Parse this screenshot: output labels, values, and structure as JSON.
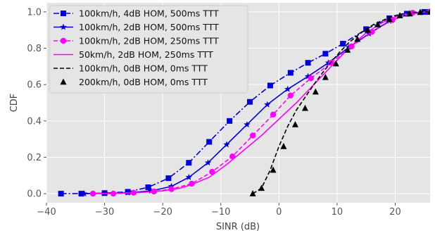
{
  "chart_data": {
    "type": "line",
    "title": "",
    "xlabel": "SINR (dB)",
    "ylabel": "CDF",
    "xlim": [
      -40,
      26
    ],
    "ylim": [
      -0.05,
      1.05
    ],
    "xticks": [
      -40,
      -30,
      -20,
      -10,
      0,
      10,
      20
    ],
    "yticks": [
      0.0,
      0.2,
      0.4,
      0.6,
      0.8,
      1.0
    ],
    "xtick_labels": [
      "−40",
      "−30",
      "−20",
      "−10",
      "0",
      "10",
      "20"
    ],
    "ytick_labels": [
      "0.0",
      "0.2",
      "0.4",
      "0.6",
      "0.8",
      "1.0"
    ],
    "grid": true,
    "legend_position": "top-left",
    "series": [
      {
        "name": "100km/h, 4dB HOM, 500ms TTT",
        "color": "#0000dd",
        "dash": "dashdot",
        "marker": "square",
        "x": [
          -37.5,
          -34,
          -30,
          -26,
          -22.5,
          -19,
          -15.5,
          -12,
          -8.5,
          -5,
          -1.5,
          2,
          5,
          8,
          11,
          15,
          19,
          22,
          25,
          26
        ],
        "y": [
          0.0,
          0.0,
          0.003,
          0.01,
          0.035,
          0.085,
          0.17,
          0.285,
          0.4,
          0.505,
          0.595,
          0.665,
          0.72,
          0.77,
          0.825,
          0.905,
          0.965,
          0.99,
          1.0,
          1.0
        ]
      },
      {
        "name": "100km/h, 2dB HOM, 500ms TTT",
        "color": "#0000dd",
        "dash": "solid",
        "marker": "star",
        "x": [
          -33.5,
          -30,
          -26,
          -22,
          -18.5,
          -15.5,
          -12.2,
          -9,
          -5.5,
          -2,
          1.5,
          5,
          8.5,
          12,
          15.5,
          19,
          22.5,
          26
        ],
        "y": [
          0.0,
          0.002,
          0.005,
          0.015,
          0.04,
          0.09,
          0.17,
          0.27,
          0.38,
          0.49,
          0.575,
          0.645,
          0.72,
          0.805,
          0.88,
          0.95,
          0.99,
          1.0
        ]
      },
      {
        "name": "100km/h, 2dB HOM, 250ms TTT",
        "color": "#ff00ff",
        "dash": "dashed",
        "marker": "circle",
        "x": [
          -32,
          -28.5,
          -25,
          -21.5,
          -18.5,
          -15,
          -11.5,
          -8,
          -4.5,
          -1,
          2,
          5.5,
          9,
          12.5,
          16,
          19.5,
          23,
          26
        ],
        "y": [
          0.0,
          0.0,
          0.005,
          0.012,
          0.025,
          0.055,
          0.12,
          0.205,
          0.32,
          0.435,
          0.54,
          0.635,
          0.72,
          0.81,
          0.89,
          0.955,
          0.995,
          1.0
        ]
      },
      {
        "name": "50km/h, 2dB HOM, 250ms TTT",
        "color": "#ff00ff",
        "dash": "solid",
        "marker": "none",
        "x": [
          -32,
          -28,
          -24,
          -20,
          -17,
          -15,
          -12,
          -9,
          -6,
          -3,
          0,
          3,
          6,
          9,
          12,
          15,
          18,
          21,
          24,
          26
        ],
        "y": [
          0.0,
          0.002,
          0.006,
          0.015,
          0.03,
          0.05,
          0.09,
          0.16,
          0.24,
          0.32,
          0.41,
          0.5,
          0.6,
          0.7,
          0.8,
          0.885,
          0.945,
          0.985,
          0.998,
          1.0
        ]
      },
      {
        "name": "100km/h, 0dB HOM, 0ms TTT",
        "color": "#000000",
        "dash": "dashed",
        "marker": "none",
        "x": [
          -4.5,
          -3,
          -1.5,
          0,
          1.5,
          3,
          4.5,
          6,
          7.5,
          9,
          10.5,
          12,
          13.5,
          15,
          16.5,
          18,
          19.5,
          21,
          22.5,
          24,
          26
        ],
        "y": [
          0.0,
          0.03,
          0.13,
          0.26,
          0.37,
          0.46,
          0.53,
          0.6,
          0.665,
          0.725,
          0.78,
          0.83,
          0.87,
          0.905,
          0.935,
          0.955,
          0.975,
          0.988,
          0.995,
          0.999,
          1.0
        ]
      },
      {
        "name": "200km/h, 0dB HOM, 0ms TTT",
        "color": "#000000",
        "dash": "none",
        "marker": "triangle",
        "x": [
          -4.5,
          -3,
          -1,
          0.8,
          2.8,
          4.5,
          6.3,
          8,
          9.8,
          11.8,
          13.5,
          15.3,
          17,
          19,
          20.8,
          22.5,
          24.3,
          26
        ],
        "y": [
          0.0,
          0.03,
          0.13,
          0.26,
          0.38,
          0.47,
          0.56,
          0.64,
          0.715,
          0.79,
          0.85,
          0.9,
          0.93,
          0.96,
          0.98,
          0.99,
          0.998,
          1.0
        ]
      }
    ]
  }
}
